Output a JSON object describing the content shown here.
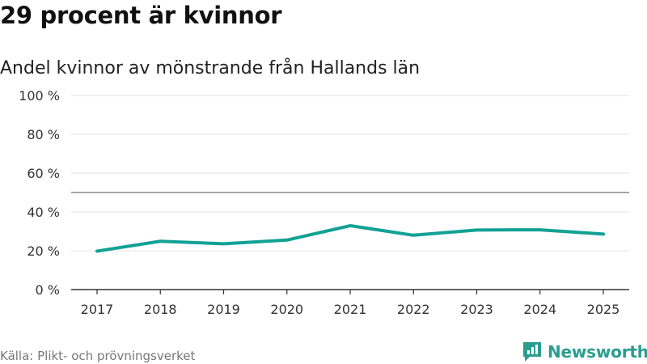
{
  "header": {
    "title": "29 procent är kvinnor",
    "subtitle": "Andel kvinnor av mönstrande från Hallands län"
  },
  "footer": {
    "source": "Källa: Plikt- och prövningsverket",
    "brand": "Newsworthy"
  },
  "colors": {
    "line": "#12a195",
    "grid": "#e3e3e3",
    "reference": "#888888",
    "brand": "#2a9d8f"
  },
  "chart_data": {
    "type": "line",
    "title": "29 procent är kvinnor",
    "subtitle": "Andel kvinnor av mönstrande från Hallands län",
    "xlabel": "",
    "ylabel": "",
    "categories": [
      "2017",
      "2018",
      "2019",
      "2020",
      "2021",
      "2022",
      "2023",
      "2024",
      "2025"
    ],
    "series": [
      {
        "name": "Andel kvinnor",
        "values": [
          19.8,
          24.9,
          23.6,
          25.5,
          32.9,
          28.0,
          30.7,
          30.8,
          28.6
        ]
      }
    ],
    "ylim": [
      0,
      100
    ],
    "yticks": [
      0,
      20,
      40,
      60,
      80,
      100
    ],
    "ytick_labels": [
      "0 %",
      "20 %",
      "40 %",
      "60 %",
      "80 %",
      "100 %"
    ],
    "reference_line": 50,
    "grid": true,
    "legend": "none"
  }
}
